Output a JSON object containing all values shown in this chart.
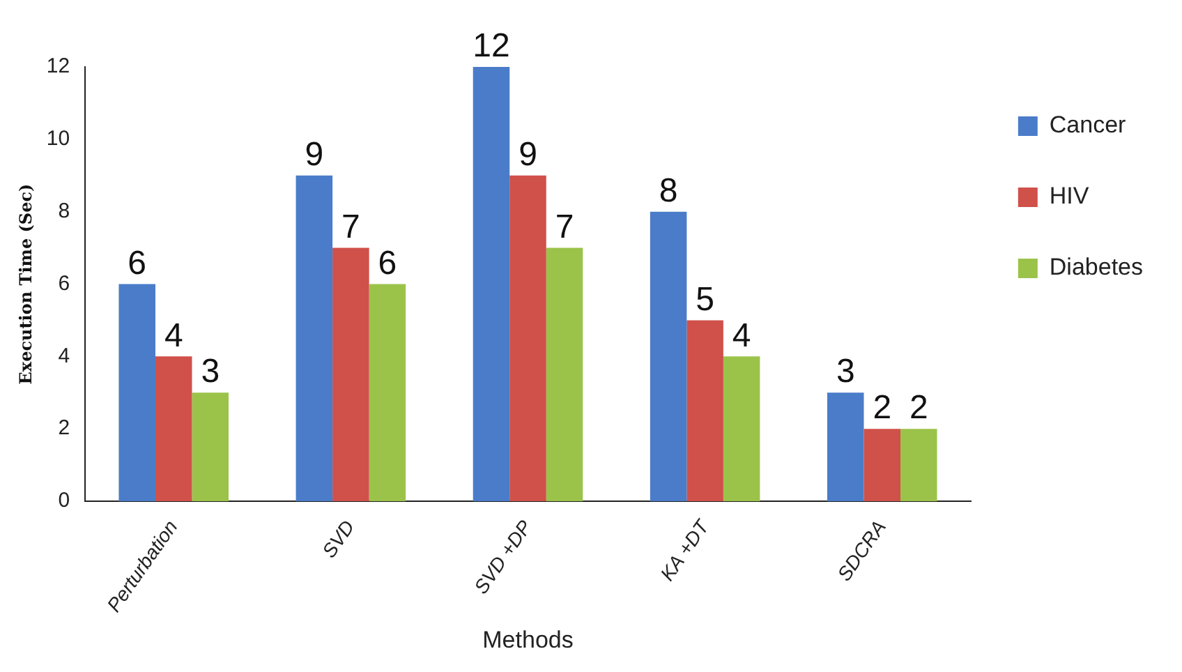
{
  "chart_data": {
    "type": "bar",
    "xlabel": "Methods",
    "ylabel": "Execution Time (Sec)",
    "categories": [
      "Perturbation",
      "SVD",
      "SVD +DP",
      "KA +DT",
      "SDCRA"
    ],
    "series": [
      {
        "name": "Cancer",
        "color": "#4a7cc9",
        "values": [
          6,
          9,
          12,
          8,
          3
        ]
      },
      {
        "name": "HIV",
        "color": "#d0504a",
        "values": [
          4,
          7,
          9,
          5,
          2
        ]
      },
      {
        "name": "Diabetes",
        "color": "#9bc34a",
        "values": [
          3,
          6,
          7,
          4,
          2
        ]
      }
    ],
    "ylim": [
      0,
      12
    ],
    "yticks": [
      0,
      2,
      4,
      6,
      8,
      10,
      12
    ],
    "grid": false,
    "legend": "top right",
    "data_labels": true
  }
}
